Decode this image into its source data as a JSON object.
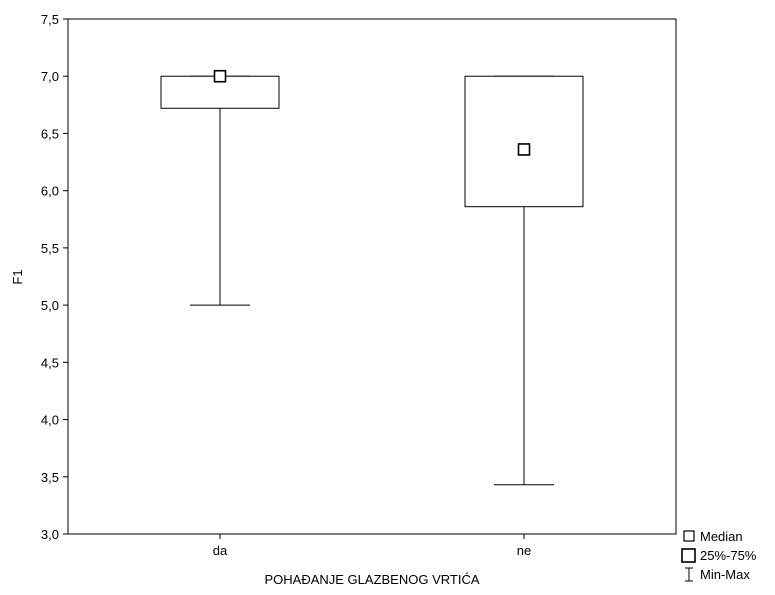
{
  "chart_data": {
    "type": "boxplot",
    "xlabel": "POHAĐANJE GLAZBENOG VRTIĆA",
    "ylabel": "F1",
    "ylim": [
      3.0,
      7.5
    ],
    "yticks": [
      3.0,
      3.5,
      4.0,
      4.5,
      5.0,
      5.5,
      6.0,
      6.5,
      7.0,
      7.5
    ],
    "ytick_labels": [
      "3,0",
      "3,5",
      "4,0",
      "4,5",
      "5,0",
      "5,5",
      "6,0",
      "6,5",
      "7,0",
      "7,5"
    ],
    "categories": [
      "da",
      "ne"
    ],
    "series": [
      {
        "category": "da",
        "median": 7.0,
        "q1": 6.72,
        "q3": 7.0,
        "min": 5.0,
        "max": 7.0
      },
      {
        "category": "ne",
        "median": 6.36,
        "q1": 5.86,
        "q3": 7.0,
        "min": 3.43,
        "max": 7.0
      }
    ],
    "grid": false,
    "legend_position": "bottom-right",
    "legend": {
      "median": "Median",
      "box": "25%-75%",
      "whisker": "Min-Max"
    }
  }
}
